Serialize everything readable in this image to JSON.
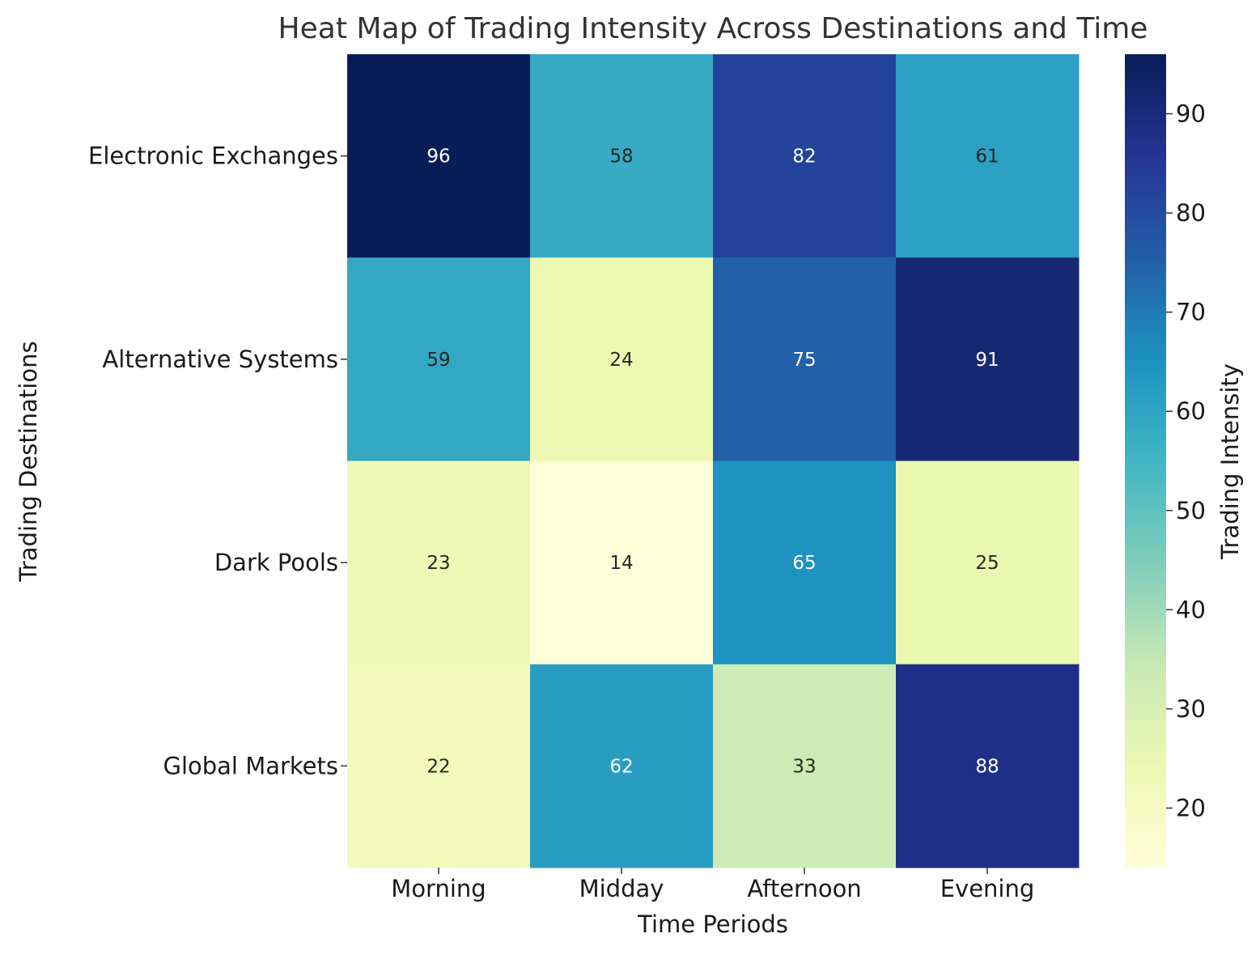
{
  "chart_data": {
    "type": "heatmap",
    "title": "Heat Map of Trading Intensity Across Destinations and Time",
    "xlabel": "Time Periods",
    "ylabel": "Trading Destinations",
    "x_categories": [
      "Morning",
      "Midday",
      "Afternoon",
      "Evening"
    ],
    "y_categories": [
      "Electronic Exchanges",
      "Alternative Systems",
      "Dark Pools",
      "Global Markets"
    ],
    "values": [
      [
        96,
        58,
        82,
        61
      ],
      [
        59,
        24,
        75,
        91
      ],
      [
        23,
        14,
        65,
        25
      ],
      [
        22,
        62,
        33,
        88
      ]
    ],
    "colorbar": {
      "label": "Trading Intensity",
      "ticks": [
        20,
        30,
        40,
        50,
        60,
        70,
        80,
        90
      ],
      "range": [
        14,
        96
      ]
    },
    "colormap": "YlGnBu",
    "annotations": true
  }
}
